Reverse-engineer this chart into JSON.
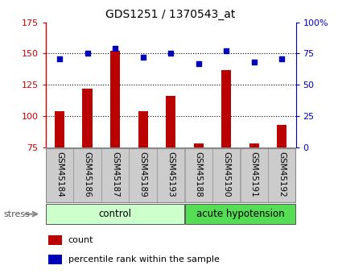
{
  "title": "GDS1251 / 1370543_at",
  "samples": [
    "GSM45184",
    "GSM45186",
    "GSM45187",
    "GSM45189",
    "GSM45193",
    "GSM45188",
    "GSM45190",
    "GSM45191",
    "GSM45192"
  ],
  "count_values": [
    104,
    122,
    152,
    104,
    116,
    78,
    137,
    78,
    93
  ],
  "percentile_values": [
    71,
    75,
    79,
    72,
    75,
    67,
    77,
    68,
    71
  ],
  "ylim_left": [
    75,
    175
  ],
  "ylim_right": [
    0,
    100
  ],
  "yticks_left": [
    75,
    100,
    125,
    150,
    175
  ],
  "yticks_right": [
    0,
    25,
    50,
    75,
    100
  ],
  "bar_color": "#bb0000",
  "dot_color": "#0000bb",
  "groups": [
    {
      "label": "control",
      "start": 0,
      "end": 5,
      "color": "#ccffcc"
    },
    {
      "label": "acute hypotension",
      "start": 5,
      "end": 9,
      "color": "#55dd55"
    }
  ],
  "label_bg_color": "#cccccc",
  "stress_label": "stress",
  "legend_count": "count",
  "legend_pct": "percentile rank within the sample",
  "title_color": "#000000",
  "left_axis_color": "#cc0000",
  "right_axis_color": "#0000cc",
  "bar_width": 0.35,
  "grid_color": "#000000"
}
